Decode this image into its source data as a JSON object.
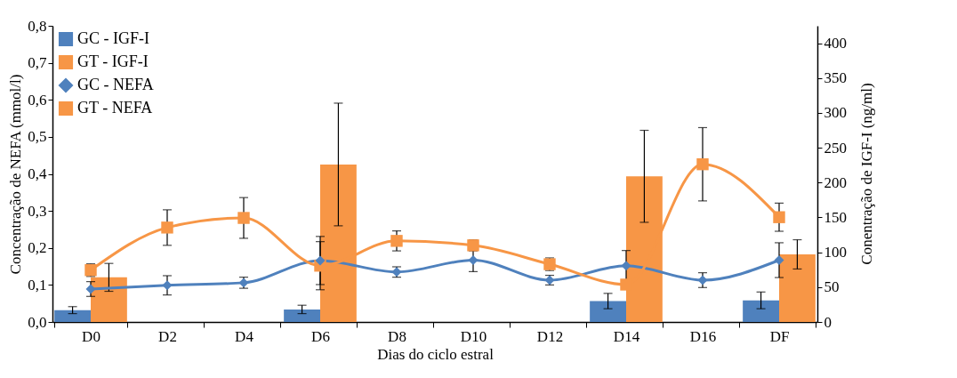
{
  "chart_data": {
    "type": "bar",
    "xlabel": "Dias do ciclo estral",
    "ylabel": "Concentração de NEFA (mmol/l)",
    "y2label": "Conentração de IGF-I (ng/ml)",
    "categories": [
      "D0",
      "D2",
      "D4",
      "D6",
      "D8",
      "D10",
      "D12",
      "D14",
      "D16",
      "DF"
    ],
    "ylim": [
      0,
      0.8
    ],
    "yticks": [
      {
        "value": 0,
        "label": "0,0"
      },
      {
        "value": 0.1,
        "label": "0,1"
      },
      {
        "value": 0.2,
        "label": "0,2"
      },
      {
        "value": 0.3,
        "label": "0,3"
      },
      {
        "value": 0.4,
        "label": "0,4"
      },
      {
        "value": 0.5,
        "label": "0,5"
      },
      {
        "value": 0.6,
        "label": "0,6"
      },
      {
        "value": 0.7,
        "label": "0,7"
      },
      {
        "value": 0.8,
        "label": "0,8"
      }
    ],
    "y2lim": [
      0,
      425
    ],
    "y2ticks": [
      0,
      50,
      100,
      150,
      200,
      250,
      300,
      350,
      400
    ],
    "legend": "top left",
    "line_style": "solid",
    "series": [
      {
        "name": "GC - IGF-I",
        "axis": "y2",
        "color": "#4f81bd",
        "values": [
          17,
          null,
          null,
          18,
          null,
          null,
          null,
          30,
          null,
          31
        ],
        "errors": [
          5,
          null,
          null,
          6,
          null,
          null,
          null,
          11,
          null,
          12
        ]
      },
      {
        "name": "GT - IGF-I",
        "axis": "y2",
        "color": "#f79646",
        "values": [
          64,
          null,
          null,
          226,
          null,
          null,
          null,
          209,
          null,
          97
        ],
        "errors": [
          20,
          null,
          null,
          88,
          null,
          null,
          null,
          66,
          null,
          21
        ]
      },
      {
        "name": "GC - NEFA",
        "type": "line",
        "axis": "y",
        "marker": "diamond",
        "color": "#4f81bd",
        "values": [
          0.089,
          0.099,
          0.106,
          0.166,
          0.135,
          0.167,
          0.113,
          0.152,
          0.113,
          0.167
        ],
        "errors": [
          0.02,
          0.026,
          0.015,
          0.065,
          0.014,
          0.031,
          0.013,
          0.041,
          0.02,
          0.047
        ]
      },
      {
        "name": "GT - NEFA",
        "type": "line",
        "axis": "y",
        "marker": "square",
        "color": "#f79646",
        "values": [
          0.14,
          0.255,
          0.281,
          0.152,
          0.219,
          0.207,
          0.156,
          0.101,
          0.426,
          0.283
        ],
        "errors": [
          0.017,
          0.048,
          0.055,
          0.065,
          0.027,
          0.015,
          0.017,
          null,
          0.099,
          0.038
        ]
      }
    ]
  }
}
